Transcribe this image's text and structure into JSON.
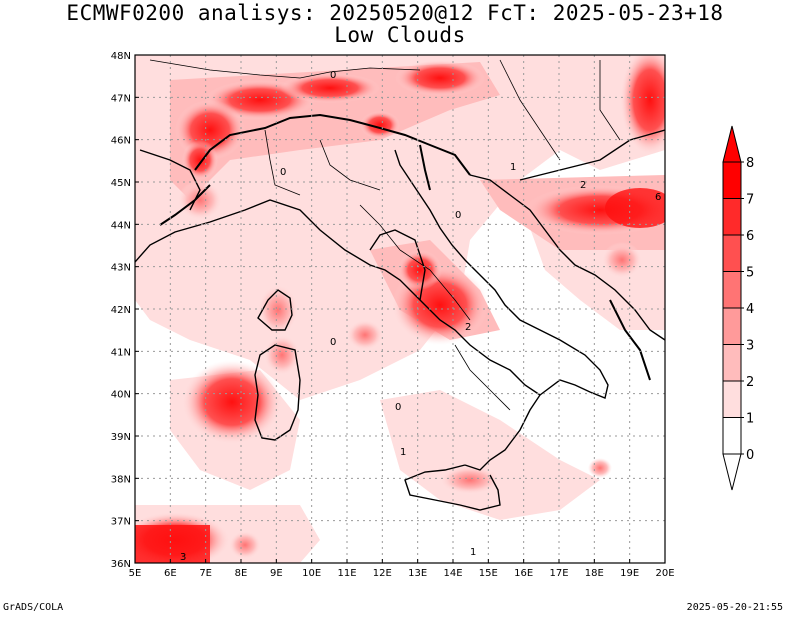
{
  "title_line1": "ECMWF0200 analisys: 20250520@12 FcT: 2025-05-23+18",
  "title_line2": "Low Clouds",
  "footer_left": "GrADS/COLA",
  "footer_right": "2025-05-20-21:55",
  "map": {
    "lon_labels": [
      "5E",
      "6E",
      "7E",
      "8E",
      "9E",
      "10E",
      "11E",
      "12E",
      "13E",
      "14E",
      "15E",
      "16E",
      "17E",
      "18E",
      "19E",
      "20E"
    ],
    "lat_labels": [
      "48N",
      "47N",
      "46N",
      "45N",
      "44N",
      "43N",
      "42N",
      "41N",
      "40N",
      "39N",
      "38N",
      "37N",
      "36N"
    ],
    "lon_range": [
      5,
      20
    ],
    "lat_range": [
      36,
      48
    ],
    "grid": "dotted"
  },
  "colorbar": {
    "labels": [
      "8",
      "7",
      "6",
      "5",
      "4",
      "3",
      "2",
      "1",
      "0"
    ],
    "colors": [
      "#ff0000",
      "#ff2a2a",
      "#ff5050",
      "#ff7474",
      "#ff9a9a",
      "#ffbcbc",
      "#ffdede",
      "#ffffff"
    ],
    "extends": "both"
  }
}
